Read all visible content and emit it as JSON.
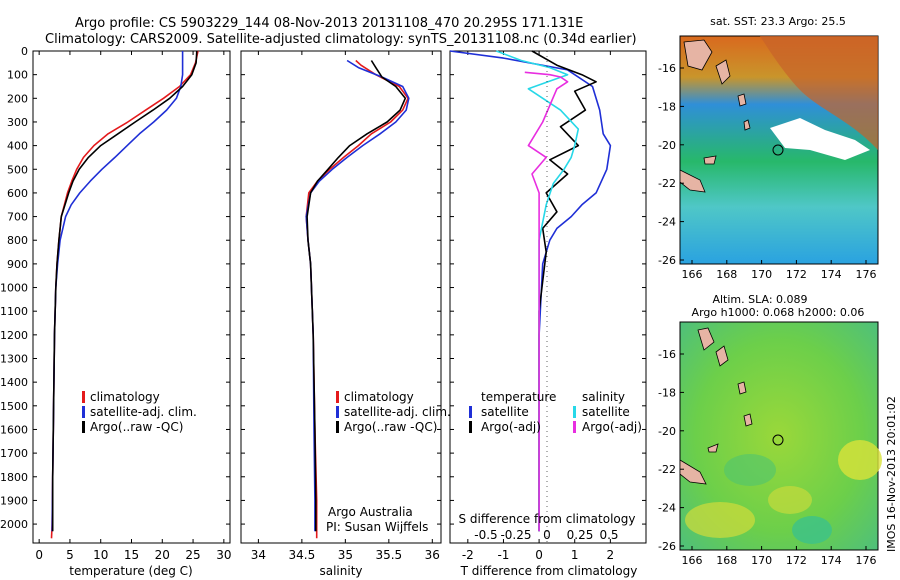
{
  "title": {
    "line1": "Argo profile: CS 5903229_144 08-Nov-2013 20131108_470 20.295S 171.131E",
    "line2": "Climatology: CARS2009. Satellite-adjusted climatology: synTS_20131108.nc (0.34d earlier)"
  },
  "credit": {
    "line1": "Argo Australia",
    "line2": "PI: Susan Wijffels"
  },
  "footer_stamp": "IMOS 16-Nov-2013 20:01:02",
  "colors": {
    "climatology": "#e41a1c",
    "satellite": "#1f2fd6",
    "argo": "#000000",
    "sat_salinity": "#27d8e8",
    "argo_salinity_adj": "#e82ee0"
  },
  "chart_data": [
    {
      "type": "line",
      "id": "temperature",
      "xlabel": "temperature (deg C)",
      "xlim": [
        -1,
        31
      ],
      "xticks": [
        0,
        5,
        10,
        15,
        20,
        25,
        30
      ],
      "xtick_labels": [
        "0",
        "5",
        "10",
        "15",
        "20",
        "25",
        "30"
      ],
      "ylim": [
        0,
        2080
      ],
      "yticks": [
        0,
        100,
        200,
        300,
        400,
        500,
        600,
        700,
        800,
        900,
        1000,
        1100,
        1200,
        1300,
        1400,
        1500,
        1600,
        1700,
        1800,
        1900,
        2000
      ],
      "ytick_labels": [
        "0",
        "100",
        "200",
        "300",
        "400",
        "500",
        "600",
        "700",
        "800",
        "900",
        "1000",
        "1100",
        "1200",
        "1300",
        "1400",
        "1500",
        "1600",
        "1700",
        "1800",
        "1900",
        "2000"
      ],
      "legend": {
        "placement": "lower-center",
        "entries": [
          "climatology",
          "satellite-adj. clim.",
          "Argo(..raw -QC)"
        ]
      },
      "series": [
        {
          "name": "climatology",
          "color": "#e41a1c",
          "x": [
            25.8,
            25.4,
            24.6,
            22.8,
            20.2,
            17.3,
            14.4,
            11.2,
            8.9,
            7.2,
            6.1,
            5.3,
            4.6,
            4.1,
            3.6,
            3.2,
            2.9,
            2.7,
            2.5,
            2.4,
            2.3,
            2.2,
            2.1,
            2.0
          ],
          "y": [
            0,
            50,
            100,
            150,
            200,
            250,
            300,
            350,
            400,
            450,
            500,
            550,
            600,
            650,
            700,
            800,
            900,
            1000,
            1200,
            1400,
            1600,
            1800,
            2000,
            2060
          ]
        },
        {
          "name": "satellite-adj. clim.",
          "color": "#1f2fd6",
          "x": [
            23.3,
            23.3,
            23.3,
            23.0,
            22.3,
            20.7,
            18.6,
            16.3,
            14.3,
            12.3,
            10.2,
            8.3,
            6.6,
            5.2,
            4.3,
            3.4,
            3.0,
            2.7,
            2.5,
            2.4,
            2.3,
            2.2,
            2.1
          ],
          "y": [
            0,
            60,
            100,
            150,
            200,
            250,
            300,
            350,
            400,
            450,
            500,
            550,
            600,
            650,
            700,
            800,
            900,
            1000,
            1200,
            1400,
            1600,
            1800,
            2030
          ]
        },
        {
          "name": "Argo(..raw -QC)",
          "color": "#000000",
          "x": [
            25.6,
            25.5,
            24.8,
            23.3,
            21.2,
            18.5,
            15.6,
            12.8,
            10.0,
            8.0,
            6.5,
            5.5,
            4.8,
            4.2,
            3.6,
            3.2,
            2.9,
            2.7,
            2.5,
            2.4,
            2.3,
            2.2,
            2.2
          ],
          "y": [
            0,
            50,
            100,
            150,
            200,
            250,
            300,
            350,
            400,
            450,
            500,
            550,
            600,
            650,
            700,
            800,
            900,
            1000,
            1200,
            1400,
            1600,
            1800,
            2030
          ]
        }
      ]
    },
    {
      "type": "line",
      "id": "salinity",
      "xlabel": "salinity",
      "xlim": [
        33.8,
        36.1
      ],
      "xticks": [
        34,
        34.5,
        35,
        35.5,
        36
      ],
      "xtick_labels": [
        "34",
        "34.5",
        "35",
        "35.5",
        "36"
      ],
      "ylim": [
        0,
        2080
      ],
      "legend": {
        "placement": "lower-center",
        "entries": [
          "climatology",
          "satellite-adj. clim.",
          "Argo(..raw -QC)"
        ]
      },
      "series": [
        {
          "name": "climatology",
          "color": "#e41a1c",
          "x": [
            35.12,
            35.18,
            35.35,
            35.62,
            35.72,
            35.66,
            35.52,
            35.3,
            35.15,
            34.98,
            34.82,
            34.68,
            34.58,
            34.55,
            34.57,
            34.6,
            34.63,
            34.65,
            34.67,
            34.67
          ],
          "y": [
            40,
            60,
            100,
            150,
            200,
            250,
            300,
            350,
            400,
            450,
            500,
            550,
            600,
            700,
            800,
            900,
            1200,
            1600,
            1900,
            2060
          ]
        },
        {
          "name": "satellite-adj. clim.",
          "color": "#1f2fd6",
          "x": [
            35.02,
            35.15,
            35.42,
            35.66,
            35.73,
            35.7,
            35.58,
            35.4,
            35.2,
            35.02,
            34.85,
            34.7,
            34.6,
            34.55,
            34.57,
            34.6,
            34.63,
            34.64,
            34.65,
            34.65
          ],
          "y": [
            40,
            70,
            110,
            150,
            200,
            250,
            300,
            350,
            400,
            450,
            500,
            550,
            600,
            700,
            800,
            900,
            1200,
            1600,
            1900,
            2030
          ]
        },
        {
          "name": "Argo(..raw -QC)",
          "color": "#000000",
          "x": [
            35.3,
            35.35,
            35.42,
            35.58,
            35.69,
            35.63,
            35.48,
            35.25,
            35.05,
            34.92,
            34.8,
            34.68,
            34.6,
            34.56,
            34.57,
            34.6,
            34.63,
            34.65,
            34.66,
            34.66
          ],
          "y": [
            40,
            70,
            110,
            150,
            200,
            250,
            300,
            350,
            400,
            450,
            500,
            550,
            600,
            700,
            800,
            900,
            1200,
            1600,
            1900,
            2030
          ]
        }
      ]
    },
    {
      "type": "line",
      "id": "difference",
      "xlabel_top": "S difference from climatology",
      "xtick_labels_top": [
        "-0.5",
        "-0.25",
        "0",
        "0.25",
        "0.5"
      ],
      "xlabel": "T difference from climatology",
      "xlim": [
        -2.5,
        3.0
      ],
      "xticks": [
        -2,
        -1,
        0,
        1,
        2
      ],
      "xtick_labels": [
        "-2",
        "-1",
        "0",
        "1",
        "2"
      ],
      "ylim": [
        0,
        2080
      ],
      "legend": {
        "placement": "lower-center",
        "col1_title": "temperature",
        "col2_title": "salinity",
        "entries": [
          "satellite",
          "Argo(-adj)",
          "satellite",
          "Argo(-adj)"
        ]
      },
      "series": [
        {
          "name": "temperature satellite",
          "color": "#1f2fd6",
          "x": [
            -2.5,
            -1.0,
            0.8,
            1.5,
            1.7,
            1.8,
            2.0,
            1.9,
            1.6,
            1.2,
            0.9,
            0.5,
            0.3,
            0.1,
            0.0,
            0.0,
            0.0
          ],
          "y": [
            0,
            30,
            80,
            150,
            250,
            350,
            400,
            500,
            600,
            650,
            700,
            750,
            800,
            900,
            1200,
            1600,
            2030
          ]
        },
        {
          "name": "temperature Argo(-adj)",
          "color": "#000000",
          "x": [
            -0.2,
            0.5,
            1.2,
            1.6,
            1.0,
            1.3,
            0.6,
            1.1,
            0.3,
            0.8,
            0.2,
            0.5,
            0.1,
            0.2,
            0.0,
            0.0,
            0.0
          ],
          "y": [
            0,
            60,
            100,
            130,
            170,
            250,
            320,
            400,
            460,
            520,
            600,
            680,
            750,
            850,
            1100,
            1500,
            2030
          ]
        },
        {
          "name": "salinity satellite",
          "color": "#27d8e8",
          "x": [
            -1.2,
            -0.5,
            0.3,
            0.8,
            -0.3,
            0.6,
            1.1,
            1.0,
            0.9,
            0.7,
            0.4,
            0.2,
            0.0,
            0.0,
            0.0
          ],
          "y": [
            0,
            40,
            70,
            100,
            160,
            250,
            330,
            400,
            450,
            500,
            560,
            650,
            800,
            1200,
            2030
          ]
        },
        {
          "name": "salinity Argo(-adj)",
          "color": "#e82ee0",
          "x": [
            -0.4,
            0.3,
            0.6,
            0.8,
            0.5,
            0.1,
            -0.3,
            0.2,
            -0.2,
            0.0,
            0.0
          ],
          "y": [
            90,
            100,
            110,
            130,
            160,
            300,
            400,
            450,
            520,
            600,
            2030
          ]
        }
      ]
    }
  ],
  "maps": [
    {
      "id": "sst-map",
      "title": "sat. SST: 23.3 Argo: 25.5",
      "xticks": [
        "166",
        "168",
        "170",
        "172",
        "174",
        "176"
      ],
      "yticks": [
        "-16",
        "-18",
        "-20",
        "-22",
        "-24",
        "-26"
      ]
    },
    {
      "id": "sla-map",
      "title_line1": "Altim. SLA: 0.089",
      "title_line2": "Argo h1000: 0.068 h2000: 0.06",
      "xticks": [
        "166",
        "168",
        "170",
        "172",
        "174",
        "176"
      ],
      "yticks": [
        "-16",
        "-18",
        "-20",
        "-22",
        "-24",
        "-26"
      ]
    }
  ]
}
